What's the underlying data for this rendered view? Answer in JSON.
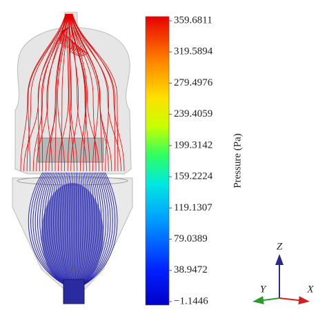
{
  "colorbar": {
    "label": "Pressure (Pa)",
    "lim": [
      -1.1446,
      359.6811
    ],
    "ticks": [
      359.6811,
      319.5894,
      279.4976,
      239.4059,
      199.3142,
      159.2224,
      119.1307,
      79.0389,
      38.9472,
      {
        "value": -1.1446,
        "label": "−1.1446"
      }
    ]
  },
  "axes_triad": {
    "z": "Z",
    "y": "Y",
    "x": "X"
  }
}
